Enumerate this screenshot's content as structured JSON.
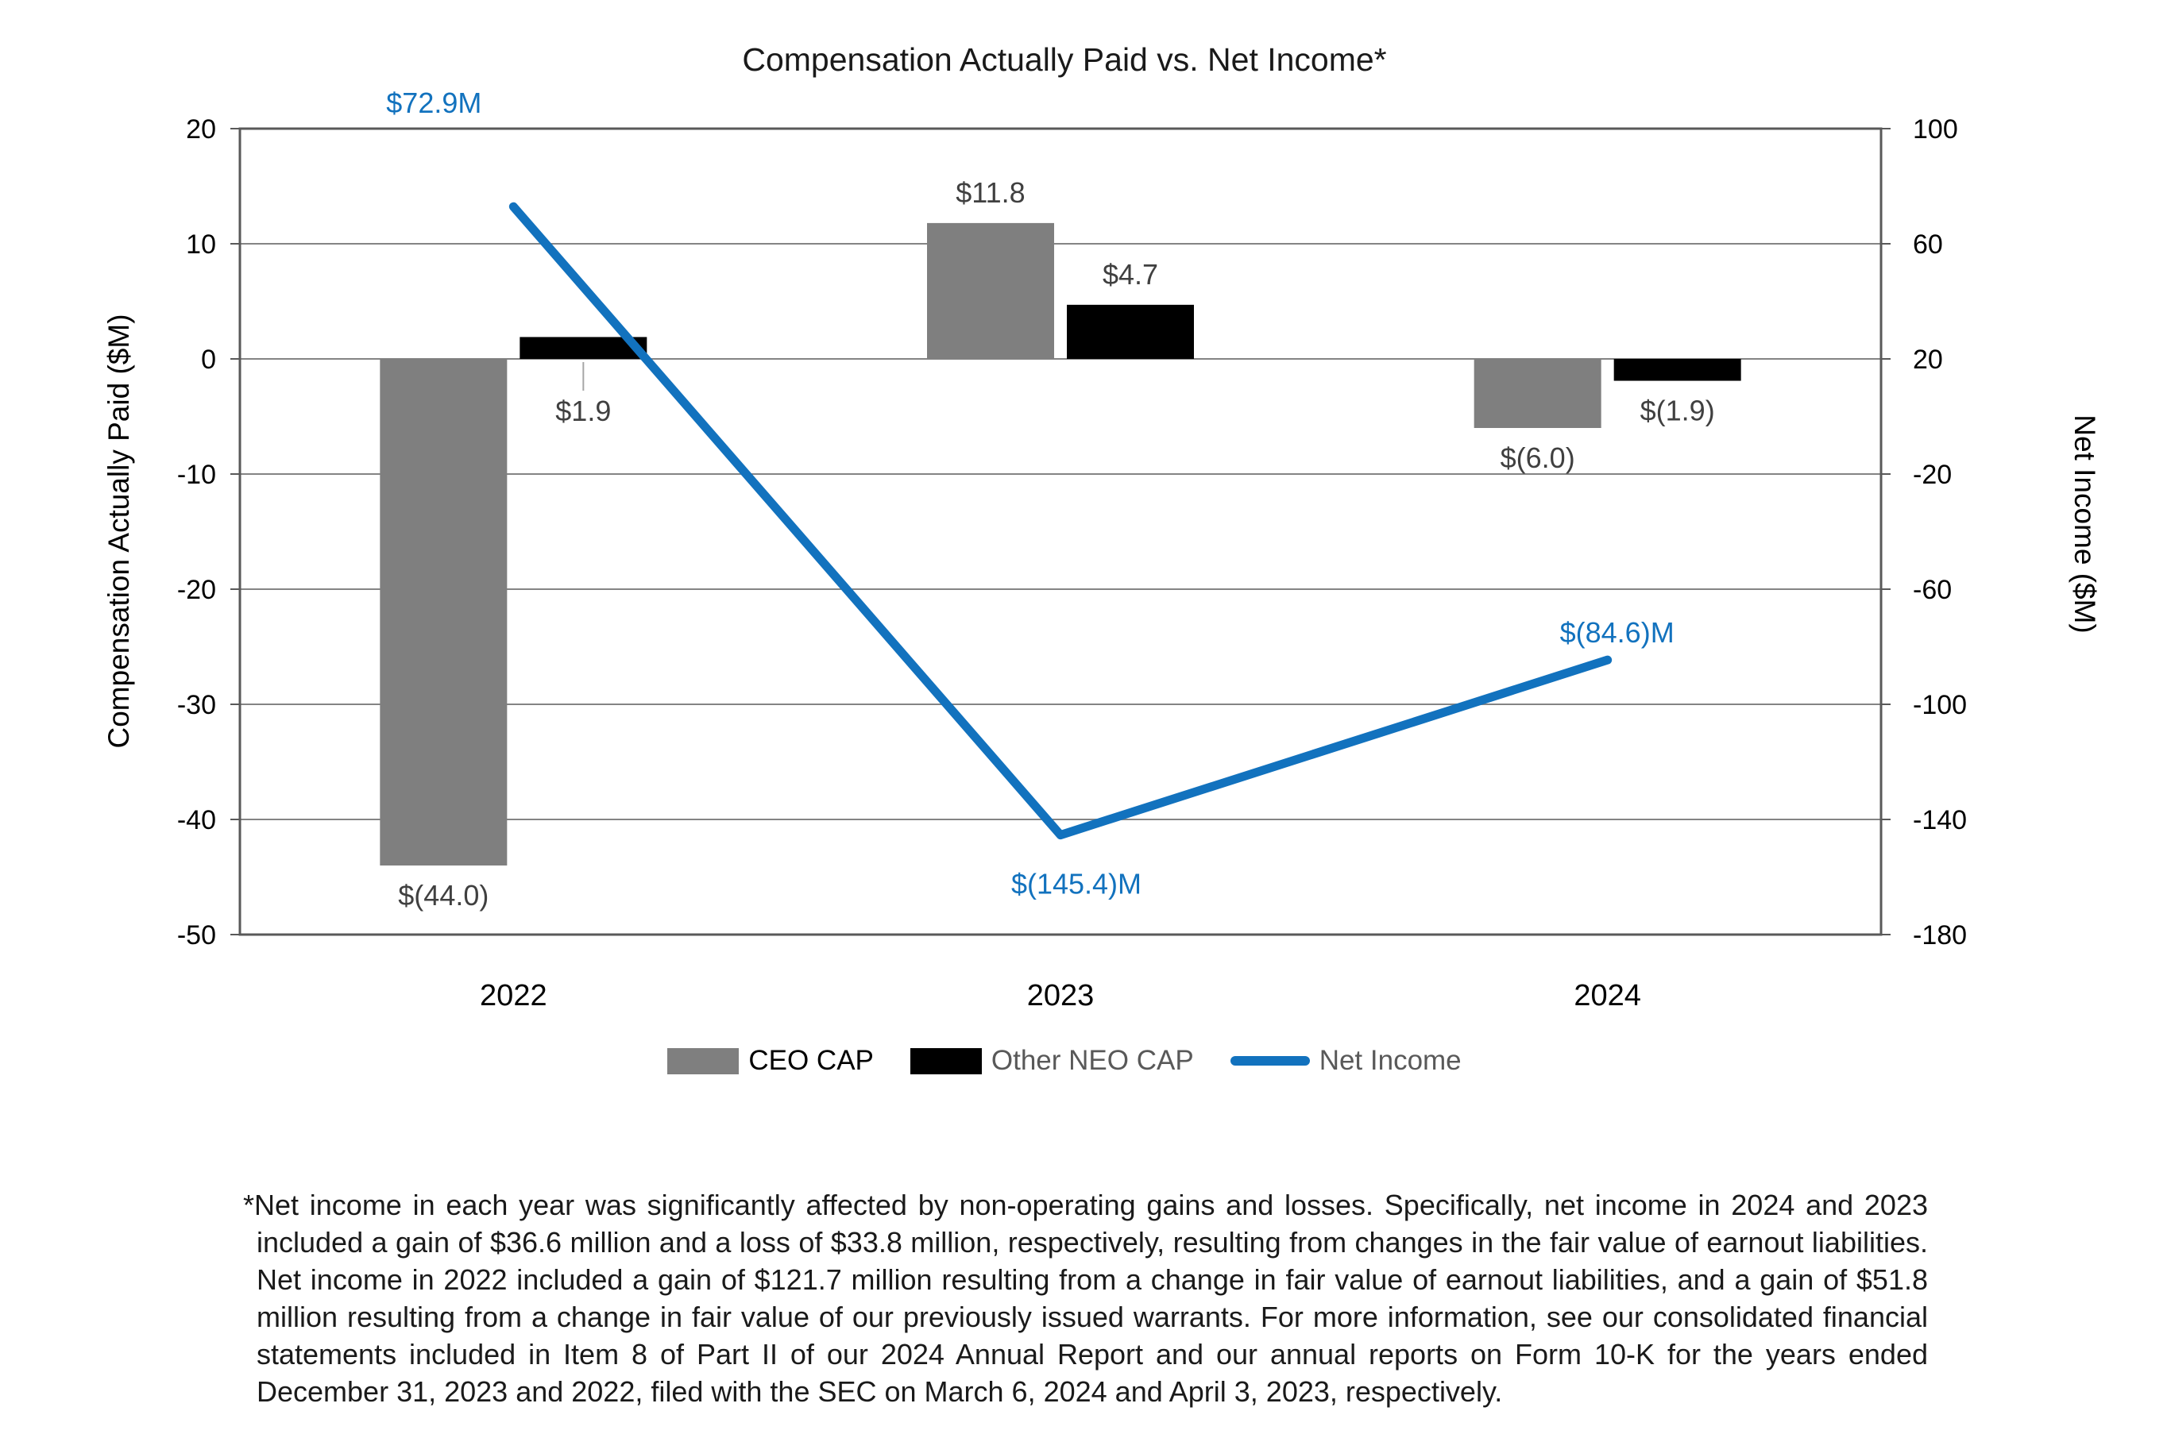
{
  "chart": {
    "title": "Compensation Actually Paid vs. Net Income*",
    "footnote": "*Net income in each year was significantly affected by non-operating gains and losses. Specifically, net income in 2024 and 2023 included a gain of $36.6 million and a loss of $33.8 million, respectively, resulting from changes in the fair value of earnout liabilities. Net income in 2022 included a gain of $121.7 million resulting from a change in fair value of earnout liabilities, and a gain of $51.8 million resulting from a change in fair value of our previously issued warrants. For more information, see our consolidated financial statements included in Item 8 of Part II of our 2024 Annual Report and our annual reports on Form 10-K for the years ended December 31, 2023 and 2022, filed with the SEC on March 6, 2024 and April 3, 2023, respectively."
  },
  "chart_data": {
    "type": "bar+line combo",
    "categories": [
      "2022",
      "2023",
      "2024"
    ],
    "series": [
      {
        "name": "CEO CAP",
        "type": "bar",
        "axis": "left",
        "color": "#7F7F7F",
        "values": [
          -44.0,
          11.8,
          -6.0
        ],
        "labels": [
          "$(44.0)",
          "$11.8",
          "$(6.0)"
        ],
        "label_callout": [
          false,
          false,
          false
        ]
      },
      {
        "name": "Other NEO CAP",
        "type": "bar",
        "axis": "left",
        "color": "#000000",
        "values": [
          1.9,
          4.7,
          -1.9
        ],
        "labels": [
          "$1.9",
          "$4.7",
          "$(1.9)"
        ],
        "label_callout": [
          true,
          false,
          false
        ]
      },
      {
        "name": "Net Income",
        "type": "line",
        "axis": "right",
        "color": "#1272BE",
        "values": [
          72.9,
          -145.4,
          -84.6
        ],
        "labels": [
          "$72.9M",
          "$(145.4)M",
          "$(84.6)M"
        ],
        "label_offsets": [
          [
            -100,
            -118
          ],
          [
            20,
            74
          ],
          [
            12,
            -22
          ]
        ]
      }
    ],
    "left_axis": {
      "title": "Compensation Actually Paid ($M)",
      "min": -50,
      "max": 20,
      "step": 10,
      "ticks": [
        20,
        10,
        0,
        -10,
        -20,
        -30,
        -40,
        -50
      ]
    },
    "right_axis": {
      "title": "Net Income ($M)",
      "min": -180,
      "max": 100,
      "step": 40,
      "ticks": [
        100,
        60,
        20,
        -20,
        -60,
        -100,
        -140,
        -180
      ]
    },
    "grid": true,
    "legend": {
      "position": "bottom",
      "items": [
        {
          "label": "CEO CAP",
          "swatch": "bar",
          "color": "#7F7F7F",
          "label_color": "#000000"
        },
        {
          "label": "Other NEO CAP",
          "swatch": "bar",
          "color": "#000000",
          "label_color": "#595959"
        },
        {
          "label": "Net Income",
          "swatch": "line",
          "color": "#1272BE",
          "label_color": "#595959"
        }
      ]
    },
    "colors": {
      "gridline": "#848484",
      "plot_border": "#595959",
      "bar_label": "#404040",
      "callout_leader": "#A6A6A6",
      "tick_label": "#000000"
    }
  }
}
